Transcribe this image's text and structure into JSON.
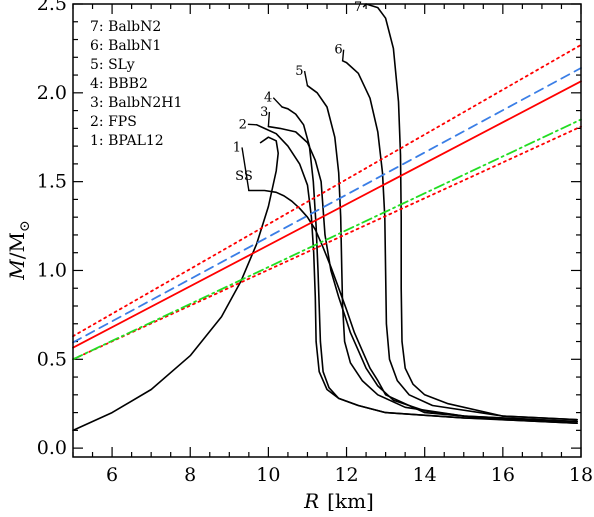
{
  "chart_data": {
    "type": "line",
    "xlabel_var": "R",
    "xlabel_unit": "[km]",
    "ylabel_num": "M",
    "ylabel_den": "M",
    "ylabel_sub": "⊙",
    "xlim": [
      5,
      18
    ],
    "ylim": [
      -0.05,
      2.5
    ],
    "x_ticks": [
      6,
      8,
      10,
      12,
      14,
      16,
      18
    ],
    "y_ticks": [
      0.0,
      0.5,
      1.0,
      1.5,
      2.0,
      2.5
    ],
    "y_tick_labels": [
      "0.0",
      "0.5",
      "1.0",
      "1.5",
      "2.0",
      "2.5"
    ],
    "grid": false,
    "legend_placement": "top-left",
    "legend": [
      "7: BalbN2",
      "6: BalbN1",
      "5: SLy",
      "4: BBB2",
      "3: BalbN2H1",
      "2: FPS",
      "1: BPAL12"
    ],
    "series": [
      {
        "label": "1",
        "color": "#000000",
        "dash": "",
        "label_pos": [
          9.3,
          1.67
        ],
        "points": [
          [
            17.9,
            0.14
          ],
          [
            16,
            0.16
          ],
          [
            14,
            0.2
          ],
          [
            13,
            0.3
          ],
          [
            12.8,
            0.38
          ],
          [
            12.6,
            0.45
          ],
          [
            12.4,
            0.55
          ],
          [
            12.2,
            0.65
          ],
          [
            12.0,
            0.78
          ],
          [
            11.8,
            0.9
          ],
          [
            11.6,
            1.02
          ],
          [
            11.4,
            1.13
          ],
          [
            11.2,
            1.23
          ],
          [
            11.0,
            1.3
          ],
          [
            10.8,
            1.35
          ],
          [
            10.6,
            1.39
          ],
          [
            10.4,
            1.42
          ],
          [
            10.2,
            1.44
          ],
          [
            9.9,
            1.45
          ],
          [
            9.5,
            1.45
          ]
        ]
      },
      {
        "label": "2",
        "color": "#000000",
        "dash": "",
        "label_pos": [
          9.45,
          1.8
        ],
        "points": [
          [
            17.9,
            0.14
          ],
          [
            15,
            0.17
          ],
          [
            13,
            0.2
          ],
          [
            12.3,
            0.24
          ],
          [
            11.8,
            0.28
          ],
          [
            11.5,
            0.33
          ],
          [
            11.3,
            0.43
          ],
          [
            11.22,
            0.6
          ],
          [
            11.2,
            0.85
          ],
          [
            11.16,
            1.1
          ],
          [
            11.1,
            1.3
          ],
          [
            11.0,
            1.48
          ],
          [
            10.8,
            1.6
          ],
          [
            10.5,
            1.7
          ],
          [
            10.2,
            1.77
          ],
          [
            9.9,
            1.8
          ],
          [
            9.7,
            1.82
          ]
        ]
      },
      {
        "label": "3",
        "color": "#000000",
        "dash": "",
        "label_pos": [
          10.0,
          1.87
        ],
        "points": [
          [
            17.9,
            0.15
          ],
          [
            15,
            0.18
          ],
          [
            14,
            0.21
          ],
          [
            13.2,
            0.27
          ],
          [
            12.8,
            0.35
          ],
          [
            12.5,
            0.45
          ],
          [
            12.3,
            0.55
          ],
          [
            12.1,
            0.65
          ],
          [
            11.95,
            0.75
          ],
          [
            11.8,
            0.85
          ],
          [
            11.6,
            1.0
          ],
          [
            11.45,
            1.2
          ],
          [
            11.35,
            1.5
          ],
          [
            11.2,
            1.62
          ],
          [
            11.0,
            1.72
          ],
          [
            10.7,
            1.78
          ],
          [
            10.3,
            1.8
          ],
          [
            10.0,
            1.81
          ]
        ]
      },
      {
        "label": "4",
        "color": "#000000",
        "dash": "",
        "label_pos": [
          10.1,
          1.95
        ],
        "points": [
          [
            17.9,
            0.15
          ],
          [
            15,
            0.17
          ],
          [
            13,
            0.2
          ],
          [
            12.3,
            0.24
          ],
          [
            11.8,
            0.28
          ],
          [
            11.55,
            0.34
          ],
          [
            11.4,
            0.43
          ],
          [
            11.33,
            0.6
          ],
          [
            11.3,
            0.8
          ],
          [
            11.27,
            1.0
          ],
          [
            11.22,
            1.25
          ],
          [
            11.15,
            1.5
          ],
          [
            11.05,
            1.7
          ],
          [
            10.9,
            1.82
          ],
          [
            10.7,
            1.88
          ],
          [
            10.5,
            1.91
          ],
          [
            10.35,
            1.92
          ]
        ]
      },
      {
        "label": "5",
        "color": "#000000",
        "dash": "",
        "label_pos": [
          10.9,
          2.1
        ],
        "points": [
          [
            17.9,
            0.15
          ],
          [
            15,
            0.18
          ],
          [
            13.5,
            0.23
          ],
          [
            12.8,
            0.3
          ],
          [
            12.4,
            0.38
          ],
          [
            12.1,
            0.48
          ],
          [
            11.95,
            0.6
          ],
          [
            11.9,
            0.8
          ],
          [
            11.88,
            1.0
          ],
          [
            11.85,
            1.3
          ],
          [
            11.8,
            1.55
          ],
          [
            11.7,
            1.75
          ],
          [
            11.5,
            1.92
          ],
          [
            11.25,
            2.0
          ],
          [
            11.0,
            2.04
          ]
        ]
      },
      {
        "label": "6",
        "color": "#000000",
        "dash": "",
        "label_pos": [
          11.9,
          2.22
        ],
        "points": [
          [
            17.9,
            0.16
          ],
          [
            16,
            0.18
          ],
          [
            14.2,
            0.24
          ],
          [
            13.6,
            0.3
          ],
          [
            13.3,
            0.38
          ],
          [
            13.1,
            0.5
          ],
          [
            13.02,
            0.7
          ],
          [
            13.0,
            1.0
          ],
          [
            12.98,
            1.3
          ],
          [
            12.92,
            1.55
          ],
          [
            12.8,
            1.78
          ],
          [
            12.6,
            1.97
          ],
          [
            12.3,
            2.11
          ],
          [
            12.0,
            2.17
          ],
          [
            11.9,
            2.18
          ]
        ]
      },
      {
        "label": "7",
        "color": "#000000",
        "dash": "",
        "label_pos": [
          12.4,
          2.46
        ],
        "points": [
          [
            17.9,
            0.16
          ],
          [
            16,
            0.18
          ],
          [
            14.6,
            0.25
          ],
          [
            14.0,
            0.3
          ],
          [
            13.7,
            0.36
          ],
          [
            13.5,
            0.45
          ],
          [
            13.42,
            0.6
          ],
          [
            13.4,
            0.9
          ],
          [
            13.4,
            1.3
          ],
          [
            13.38,
            1.65
          ],
          [
            13.33,
            1.95
          ],
          [
            13.2,
            2.25
          ],
          [
            13.0,
            2.42
          ],
          [
            12.8,
            2.48
          ],
          [
            12.5,
            2.5
          ]
        ]
      },
      {
        "label": "SS",
        "color": "#000000",
        "dash": "",
        "label_pos": [
          9.6,
          1.51
        ],
        "points": [
          [
            5,
            0.1
          ],
          [
            6,
            0.2
          ],
          [
            7,
            0.33
          ],
          [
            8,
            0.52
          ],
          [
            8.8,
            0.74
          ],
          [
            9.3,
            0.94
          ],
          [
            9.7,
            1.15
          ],
          [
            10.0,
            1.36
          ],
          [
            10.2,
            1.56
          ],
          [
            10.25,
            1.66
          ],
          [
            10.2,
            1.73
          ],
          [
            10.0,
            1.75
          ],
          [
            9.8,
            1.72
          ]
        ]
      },
      {
        "label": "",
        "color": "#ff0000",
        "dash": "",
        "label_pos": null,
        "points": [
          [
            5,
            0.565
          ],
          [
            18,
            2.065
          ]
        ]
      },
      {
        "label": "",
        "color": "#ff0000",
        "dash": "2,4",
        "label_pos": null,
        "points": [
          [
            5,
            0.63
          ],
          [
            18,
            2.27
          ]
        ]
      },
      {
        "label": "",
        "color": "#ff0000",
        "dash": "2,4",
        "label_pos": null,
        "points": [
          [
            5,
            0.5
          ],
          [
            18,
            1.81
          ]
        ]
      },
      {
        "label": "",
        "color": "#3a7ee6",
        "dash": "9,6",
        "label_pos": null,
        "points": [
          [
            5,
            0.595
          ],
          [
            18,
            2.14
          ]
        ]
      },
      {
        "label": "",
        "color": "#22dd22",
        "dash": "10,4,2,4",
        "label_pos": null,
        "points": [
          [
            5,
            0.5
          ],
          [
            18,
            1.85
          ]
        ]
      }
    ]
  }
}
